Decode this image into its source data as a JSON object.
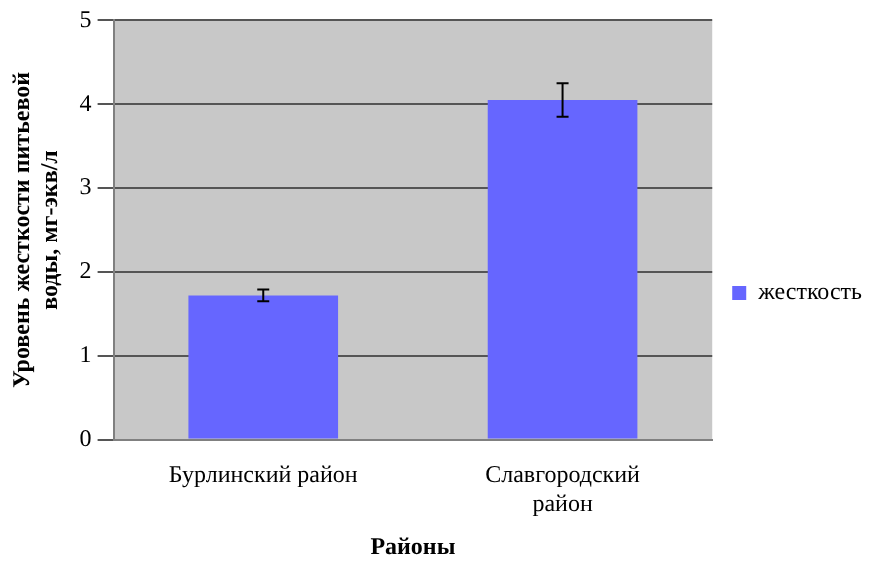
{
  "chart_data": {
    "type": "bar",
    "xlabel": "Районы",
    "ylabel": "Уровень жесткости питьевой воды, мг-экв/л",
    "categories": [
      "Бурлинский район",
      "Славгородский район"
    ],
    "series": [
      {
        "name": "жесткость",
        "color": "#6666ff",
        "values": [
          1.72,
          4.05
        ],
        "errors": [
          0.07,
          0.2
        ]
      }
    ],
    "ylim": [
      0,
      5
    ],
    "yticks": [
      0,
      1,
      2,
      3,
      4,
      5
    ],
    "grid": "y",
    "legend": "right"
  }
}
